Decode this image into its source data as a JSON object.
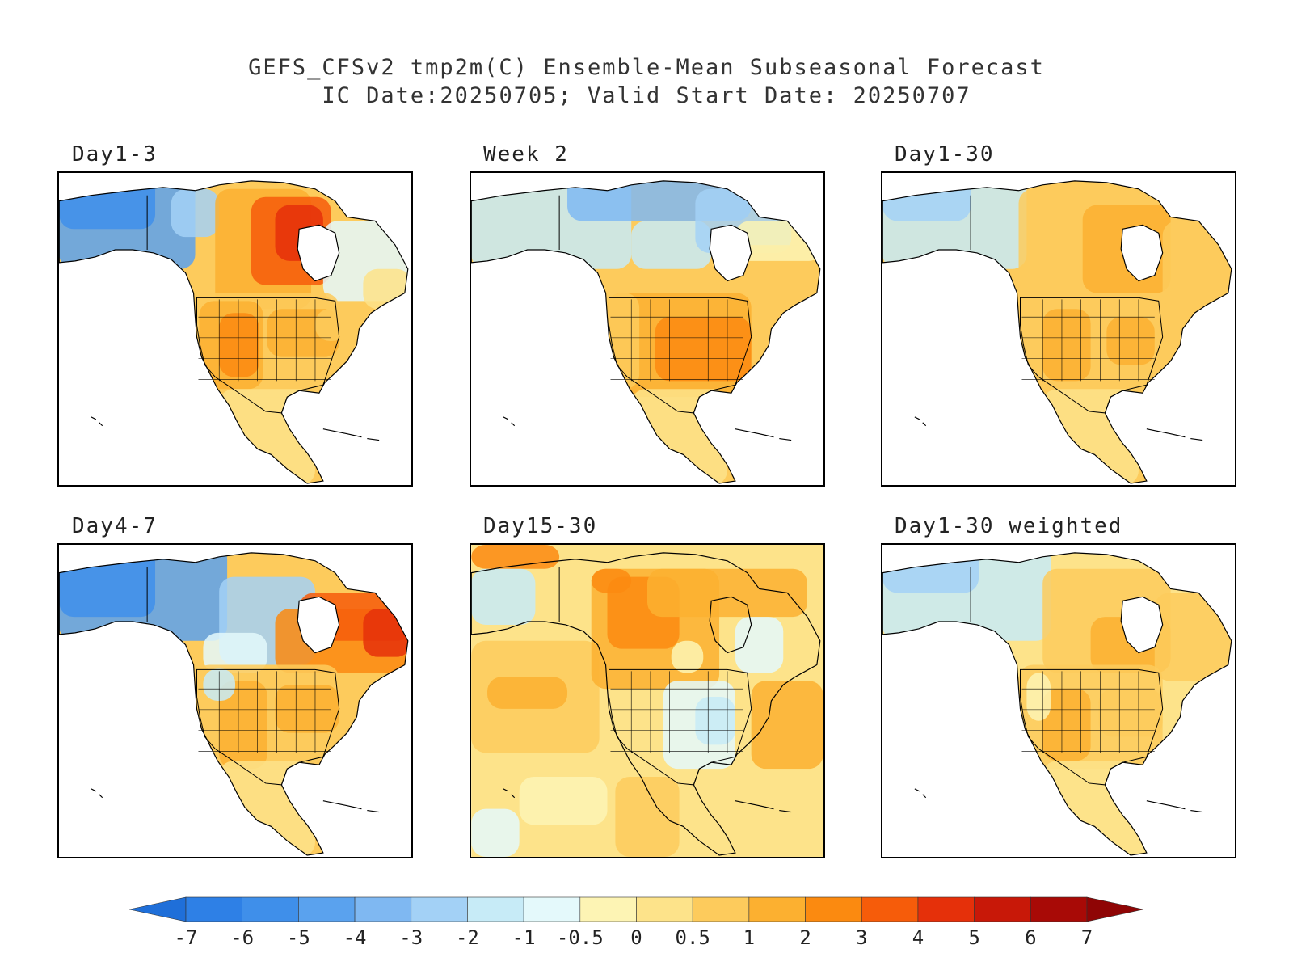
{
  "title": {
    "line1": "GEFS_CFSv2 tmp2m(C) Ensemble-Mean Subseasonal Forecast",
    "line2": "IC Date:20250705; Valid Start Date: 20250707"
  },
  "panels": [
    {
      "label": "Day1-3",
      "pattern": "day1_3"
    },
    {
      "label": "Week 2",
      "pattern": "week2"
    },
    {
      "label": "Day1-30",
      "pattern": "day1_30"
    },
    {
      "label": "Day4-7",
      "pattern": "day4_7"
    },
    {
      "label": "Day15-30",
      "pattern": "day15_30"
    },
    {
      "label": "Day1-30 weighted",
      "pattern": "day1_30w"
    }
  ],
  "colorbar": {
    "ticks": [
      "-7",
      "-6",
      "-5",
      "-4",
      "-3",
      "-2",
      "-1",
      "-0.5",
      "0",
      "0.5",
      "1",
      "2",
      "3",
      "4",
      "5",
      "6",
      "7"
    ],
    "colors": [
      "#1f6fd9",
      "#2e80e6",
      "#3f8fea",
      "#5aa2ee",
      "#7fb8f2",
      "#a3d1f6",
      "#c7ebf7",
      "#e4f9fb",
      "#fdf4b4",
      "#fde38a",
      "#fdcb5c",
      "#fcb030",
      "#fb8a10",
      "#f65c0a",
      "#e5300a",
      "#c81808",
      "#a80a06",
      "#8f0505"
    ]
  }
}
